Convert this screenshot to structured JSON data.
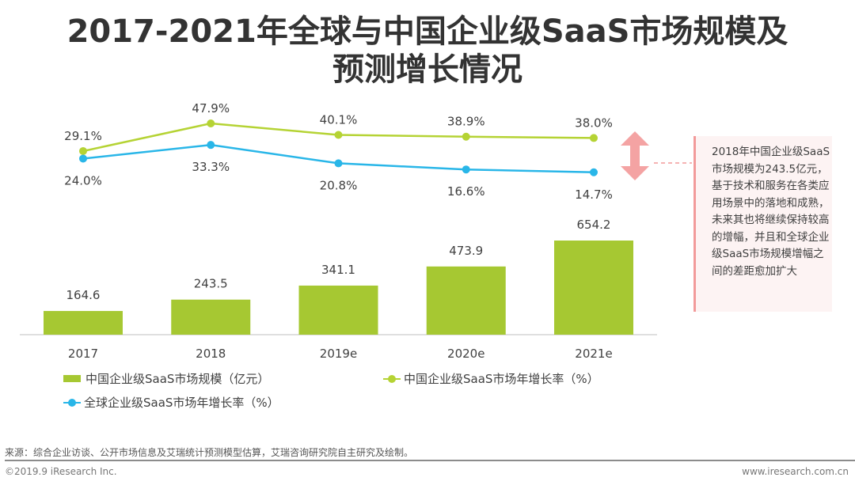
{
  "title_line1": "2017-2021年全球与中国企业级SaaS市场规模及",
  "title_line2": "预测增长情况",
  "chart_data": {
    "type": "bar+line",
    "categories": [
      "2017",
      "2018",
      "2019e",
      "2020e",
      "2021e"
    ],
    "series": [
      {
        "name": "中国企业级SaaS市场规模（亿元）",
        "type": "bar",
        "color": "#a6c832",
        "values": [
          164.6,
          243.5,
          341.1,
          473.9,
          654.2
        ],
        "labels": [
          "164.6",
          "243.5",
          "341.1",
          "473.9",
          "654.2"
        ]
      },
      {
        "name": "中国企业级SaaS市场年增长率（%）",
        "type": "line",
        "color": "#b5d334",
        "values": [
          29.1,
          47.9,
          40.1,
          38.9,
          38.0
        ],
        "labels": [
          "29.1%",
          "47.9%",
          "40.1%",
          "38.9%",
          "38.0%"
        ]
      },
      {
        "name": "全球企业级SaaS市场年增长率（%）",
        "type": "line",
        "color": "#29b6e8",
        "values": [
          24.0,
          33.3,
          20.8,
          16.6,
          14.7
        ],
        "labels": [
          "24.0%",
          "33.3%",
          "20.8%",
          "16.6%",
          "14.7%"
        ]
      }
    ],
    "legend_position": "bottom",
    "grid": false
  },
  "annotation": "2018年中国企业级SaaS市场规模为243.5亿元，基于技术和服务在各类应用场景中的落地和成熟，未来其也将继续保持较高的增幅，并且和全球企业级SaaS市场规模增幅之间的差距愈加扩大",
  "source": "来源：综合企业访谈、公开市场信息及艾瑞统计预测模型估算，艾瑞咨询研究院自主研究及绘制。",
  "copyright": "©2019.9 iResearch Inc.",
  "url": "www.iresearch.com.cn"
}
